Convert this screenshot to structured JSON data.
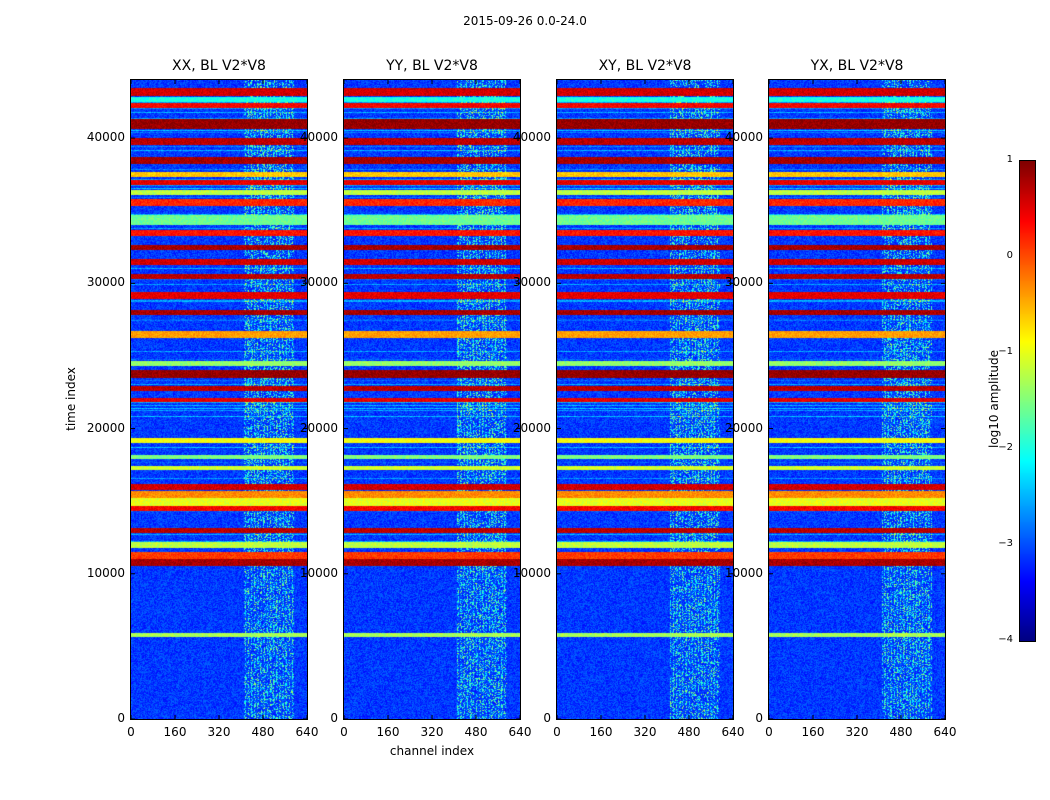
{
  "chart_data": {
    "type": "heatmap",
    "suptitle": "2015-09-26 0.0-24.0",
    "xlabel": "channel index",
    "ylabel": "time index",
    "xlim": [
      0,
      640
    ],
    "ylim": [
      0,
      44000
    ],
    "xticks": [
      0,
      160,
      320,
      480,
      640
    ],
    "xtick_labels": [
      "0",
      "160",
      "320",
      "480",
      "640"
    ],
    "yticks": [
      0,
      10000,
      20000,
      30000,
      40000
    ],
    "ytick_labels": [
      "0",
      "10000",
      "20000",
      "30000",
      "40000"
    ],
    "panels": [
      {
        "title": "XX, BL V2*V8"
      },
      {
        "title": "YY, BL V2*V8"
      },
      {
        "title": "XY, BL V2*V8"
      },
      {
        "title": "YX, BL V2*V8"
      }
    ],
    "colorbar": {
      "label": "log10 amplitude",
      "vmin": -4,
      "vmax": 1,
      "ticks": [
        1,
        0,
        -1,
        -2,
        -3,
        -4
      ],
      "tick_labels": [
        "1",
        "0",
        "−1",
        "−2",
        "−3",
        "−4"
      ],
      "colormap": "jet"
    },
    "background_level": -3.1,
    "rfi_channel_range": [
      410,
      590
    ],
    "bands": [
      {
        "t": 43200,
        "width": 400,
        "v": 0.6
      },
      {
        "t": 42700,
        "width": 200,
        "v": -2.0
      },
      {
        "t": 42300,
        "width": 200,
        "v": 0.4
      },
      {
        "t": 41000,
        "width": 600,
        "v": 0.9
      },
      {
        "t": 39800,
        "width": 400,
        "v": 0.7
      },
      {
        "t": 38500,
        "width": 300,
        "v": 0.8
      },
      {
        "t": 37500,
        "width": 200,
        "v": -0.6
      },
      {
        "t": 37000,
        "width": 200,
        "v": 0.5
      },
      {
        "t": 36300,
        "width": 250,
        "v": -1.2
      },
      {
        "t": 35600,
        "width": 300,
        "v": 0.2
      },
      {
        "t": 34400,
        "width": 600,
        "v": -1.6
      },
      {
        "t": 33500,
        "width": 300,
        "v": 0.3
      },
      {
        "t": 32500,
        "width": 200,
        "v": 0.8
      },
      {
        "t": 31500,
        "width": 300,
        "v": 0.6
      },
      {
        "t": 30500,
        "width": 200,
        "v": 0.7
      },
      {
        "t": 29200,
        "width": 400,
        "v": 0.5
      },
      {
        "t": 28000,
        "width": 200,
        "v": 0.8
      },
      {
        "t": 26500,
        "width": 300,
        "v": -0.4
      },
      {
        "t": 24500,
        "width": 200,
        "v": -1.4
      },
      {
        "t": 23800,
        "width": 400,
        "v": 0.9
      },
      {
        "t": 22800,
        "width": 200,
        "v": 0.7
      },
      {
        "t": 22000,
        "width": 200,
        "v": 0.5
      },
      {
        "t": 19200,
        "width": 200,
        "v": -0.9
      },
      {
        "t": 18100,
        "width": 150,
        "v": -1.5
      },
      {
        "t": 17300,
        "width": 150,
        "v": -1.1
      },
      {
        "t": 16000,
        "width": 300,
        "v": 0.6
      },
      {
        "t": 15500,
        "width": 300,
        "v": -0.3
      },
      {
        "t": 15000,
        "width": 400,
        "v": -1.0
      },
      {
        "t": 14500,
        "width": 200,
        "v": 0.4
      },
      {
        "t": 13000,
        "width": 200,
        "v": 0.7
      },
      {
        "t": 12000,
        "width": 250,
        "v": -1.2
      },
      {
        "t": 11300,
        "width": 350,
        "v": 0.1
      },
      {
        "t": 10800,
        "width": 300,
        "v": 0.8
      },
      {
        "t": 5800,
        "width": 120,
        "v": -1.3
      }
    ]
  }
}
